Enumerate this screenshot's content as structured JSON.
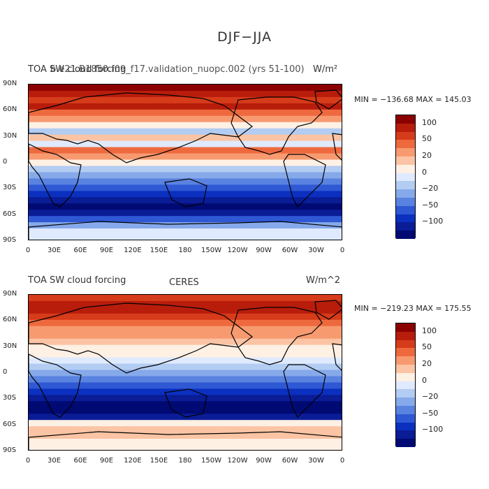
{
  "title": "DJF−JJA",
  "palette": [
    "#8b0000",
    "#b81d0c",
    "#d63b1a",
    "#ee6a3e",
    "#f79a70",
    "#fbc4a4",
    "#fff0e4",
    "#dfeaff",
    "#b3ccf2",
    "#86a9ea",
    "#5a82e0",
    "#2f58d4",
    "#0b30bf",
    "#0a1c96",
    "#000a72"
  ],
  "colorbar_labels": [
    "100",
    "50",
    "20",
    "0",
    "−20",
    "−50",
    "−100"
  ],
  "lat_ticks": [
    "90N",
    "60N",
    "30N",
    "0",
    "30S",
    "60S",
    "90S"
  ],
  "lon_ticks": [
    "0",
    "30E",
    "60E",
    "90E",
    "120E",
    "150E",
    "180",
    "150W",
    "120W",
    "90W",
    "60W",
    "30W",
    "0"
  ],
  "panels": [
    {
      "left_label": "TOA SW cloud forcing",
      "center_label": "b.e21.B1850.f09_f17.validation_nuopc.002 (yrs 51-100)",
      "units": "W/m²",
      "minmax": "MIN = −136.68 MAX = 145.03",
      "stats": {
        "min": -136.68,
        "max": 145.03
      }
    },
    {
      "left_label": "TOA SW cloud forcing",
      "center_label": "CERES",
      "units": "W/m^2",
      "minmax": "MIN = −219.23 MAX = 175.55",
      "stats": {
        "min": -219.23,
        "max": 175.55
      }
    }
  ]
}
